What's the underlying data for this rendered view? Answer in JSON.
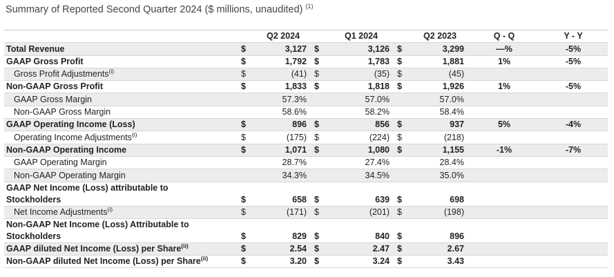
{
  "header": {
    "title": "Summary of Reported Second Quarter 2024 ($ millions, unaudited)",
    "title_note": "(1)"
  },
  "table": {
    "columns": [
      "Q2 2024",
      "Q1 2024",
      "Q2 2023",
      "Q - Q",
      "Y - Y"
    ],
    "rows": [
      {
        "label": "Total Revenue",
        "bold": true,
        "cells": [
          "$",
          "3,127",
          "$",
          "3,126",
          "$",
          "3,299",
          "—%",
          "-5%"
        ]
      },
      {
        "label": "GAAP Gross Profit",
        "bold": true,
        "cells": [
          "$",
          "1,792",
          "$",
          "1,783",
          "$",
          "1,881",
          "1%",
          "-5%"
        ]
      },
      {
        "label": "Gross Profit Adjustments",
        "note": "(i)",
        "indent": true,
        "cells": [
          "$",
          "(41)",
          "$",
          "(35)",
          "$",
          "(45)",
          null,
          null
        ]
      },
      {
        "label": "Non-GAAP Gross Profit",
        "bold": true,
        "cells": [
          "$",
          "1,833",
          "$",
          "1,818",
          "$",
          "1,926",
          "1%",
          "-5%"
        ]
      },
      {
        "label": "GAAP Gross Margin",
        "indent": true,
        "cells": [
          null,
          "57.3%",
          null,
          "57.0%",
          null,
          "57.0%",
          null,
          null
        ]
      },
      {
        "label": "Non-GAAP Gross Margin",
        "indent": true,
        "cells": [
          null,
          "58.6%",
          null,
          "58.2%",
          null,
          "58.4%",
          null,
          null
        ]
      },
      {
        "label": "GAAP Operating Income (Loss)",
        "bold": true,
        "cells": [
          "$",
          "896",
          "$",
          "856",
          "$",
          "937",
          "5%",
          "-4%"
        ]
      },
      {
        "label": "Operating Income Adjustments",
        "note": "(i)",
        "indent": true,
        "cells": [
          "$",
          "(175)",
          "$",
          "(224)",
          "$",
          "(218)",
          null,
          null
        ]
      },
      {
        "label": "Non-GAAP Operating Income",
        "bold": true,
        "cells": [
          "$",
          "1,071",
          "$",
          "1,080",
          "$",
          "1,155",
          "-1%",
          "-7%"
        ]
      },
      {
        "label": "GAAP Operating Margin",
        "indent": true,
        "cells": [
          null,
          "28.7%",
          null,
          "27.4%",
          null,
          "28.4%",
          null,
          null
        ]
      },
      {
        "label": "Non-GAAP Operating Margin",
        "indent": true,
        "cells": [
          null,
          "34.3%",
          null,
          "34.5%",
          null,
          "35.0%",
          null,
          null
        ]
      },
      {
        "label": [
          "GAAP Net Income (Loss) attributable to",
          "Stockholders"
        ],
        "bold": true,
        "cells": [
          "$",
          "658",
          "$",
          "639",
          "$",
          "698",
          null,
          null
        ]
      },
      {
        "label": "Net Income Adjustments",
        "note": "(i)",
        "indent": true,
        "cells": [
          "$",
          "(171)",
          "$",
          "(201)",
          "$",
          "(198)",
          null,
          null
        ]
      },
      {
        "label": [
          "Non-GAAP Net Income (Loss) Attributable to",
          "Stockholders"
        ],
        "bold": true,
        "cells": [
          "$",
          "829",
          "$",
          "840",
          "$",
          "896",
          null,
          null
        ]
      },
      {
        "label": "GAAP diluted Net Income (Loss) per Share",
        "note": "(ii)",
        "bold": true,
        "cells": [
          "$",
          "2.54",
          "$",
          "2.47",
          "$",
          "2.67",
          null,
          null
        ]
      },
      {
        "label": "Non-GAAP diluted Net Income (Loss) per Share",
        "note": "(ii)",
        "bold": true,
        "cells": [
          "$",
          "3.20",
          "$",
          "3.24",
          "$",
          "3.43",
          null,
          null
        ]
      }
    ]
  }
}
